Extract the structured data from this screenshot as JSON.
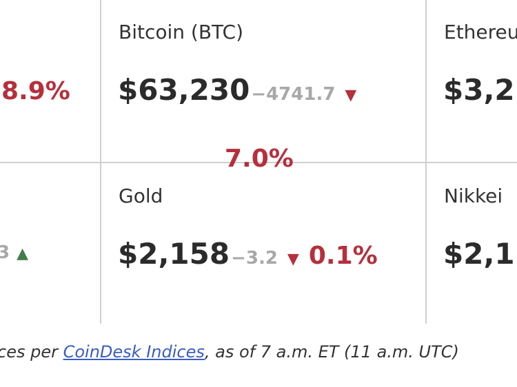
{
  "cells": {
    "top_left": {
      "pct": "8.9%"
    },
    "bitcoin": {
      "name": "Bitcoin (BTC)",
      "price": "$63,230",
      "change": "−4741.7",
      "direction_icon": "triangle-down",
      "pct": "7.0%"
    },
    "ethereum": {
      "name": "Ethereu",
      "price": "$3,2"
    },
    "bottom_left": {
      "change_partial": "3",
      "direction_icon": "triangle-up"
    },
    "gold": {
      "name": "Gold",
      "price": "$2,158",
      "change": "−3.2",
      "direction_icon": "triangle-down",
      "pct": "0.1%"
    },
    "nikkei": {
      "name": "Nikkei",
      "price": "$2,1"
    }
  },
  "footer": {
    "prefix": "ces per ",
    "link": "CoinDesk Indices",
    "suffix": ", as of 7 a.m. ET (11 a.m. UTC)"
  },
  "colors": {
    "negative": "#b5303c",
    "positive": "#3f7d4a",
    "muted": "#a8a8a8",
    "link": "#3a5cc4"
  }
}
